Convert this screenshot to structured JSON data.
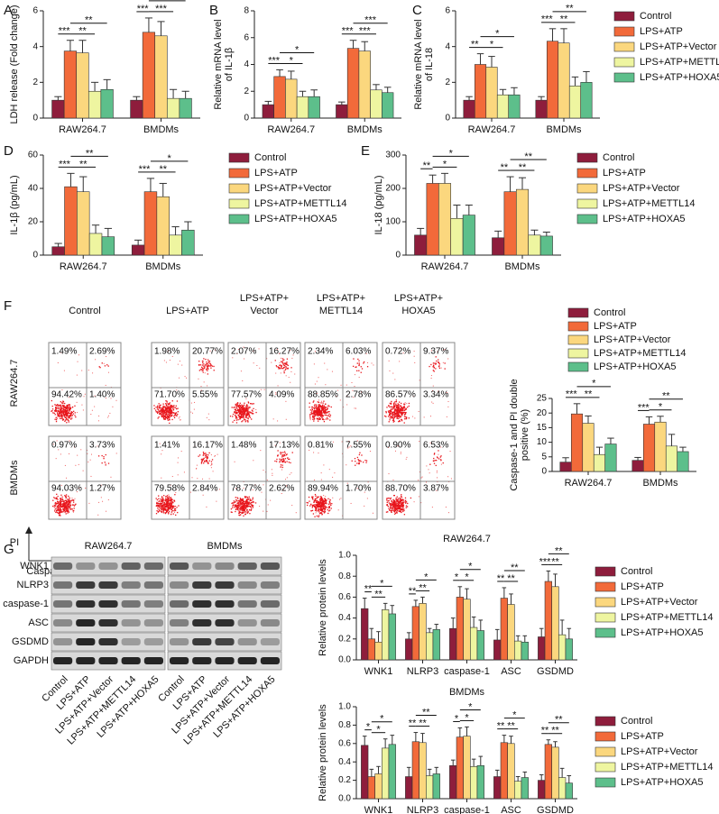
{
  "chart_data": [
    {
      "type": "bar",
      "label": "A",
      "ylabel": "LDH release (Fold change)",
      "categories": [
        "RAW264.7",
        "BMDMs"
      ],
      "ylim": [
        0,
        6
      ],
      "yticks": [
        0,
        2,
        4,
        6
      ],
      "series": [
        {
          "color": "#8e1d3c",
          "values": [
            1.0,
            1.0
          ],
          "errors": [
            0.2,
            0.2
          ]
        },
        {
          "color": "#f26a3a",
          "values": [
            3.75,
            4.8
          ],
          "errors": [
            0.6,
            0.8
          ]
        },
        {
          "color": "#fbd77e",
          "values": [
            3.65,
            4.6
          ],
          "errors": [
            0.7,
            0.8
          ]
        },
        {
          "color": "#eef5a0",
          "values": [
            1.5,
            1.1
          ],
          "errors": [
            0.5,
            0.5
          ]
        },
        {
          "color": "#5dbf8b",
          "values": [
            1.6,
            1.1
          ],
          "errors": [
            0.55,
            0.4
          ]
        }
      ],
      "significance": [
        [
          "***",
          "**",
          "**"
        ],
        [
          "***",
          "***",
          "***"
        ]
      ]
    },
    {
      "type": "bar",
      "label": "B",
      "ylabel": [
        "Relative mRNA level",
        "of IL-1β"
      ],
      "categories": [
        "RAW264.7",
        "BMDMs"
      ],
      "ylim": [
        0,
        8
      ],
      "yticks": [
        0,
        2,
        4,
        6,
        8
      ],
      "series": [
        {
          "color": "#8e1d3c",
          "values": [
            1.0,
            1.0
          ],
          "errors": [
            0.25,
            0.2
          ]
        },
        {
          "color": "#f26a3a",
          "values": [
            3.1,
            5.2
          ],
          "errors": [
            0.5,
            0.6
          ]
        },
        {
          "color": "#fbd77e",
          "values": [
            2.9,
            5.0
          ],
          "errors": [
            0.6,
            0.7
          ]
        },
        {
          "color": "#eef5a0",
          "values": [
            1.6,
            2.1
          ],
          "errors": [
            0.4,
            0.4
          ]
        },
        {
          "color": "#5dbf8b",
          "values": [
            1.6,
            1.9
          ],
          "errors": [
            0.5,
            0.4
          ]
        }
      ],
      "significance": [
        [
          "***",
          "*",
          "*"
        ],
        [
          "***",
          "***",
          "***"
        ]
      ]
    },
    {
      "type": "bar",
      "label": "C",
      "ylabel": [
        "Relative mRNA level",
        "of IL-18"
      ],
      "categories": [
        "RAW264.7",
        "BMDMs"
      ],
      "ylim": [
        0,
        6
      ],
      "yticks": [
        0,
        2,
        4,
        6
      ],
      "series": [
        {
          "name": "Control",
          "color": "#8e1d3c",
          "values": [
            1.0,
            1.0
          ],
          "errors": [
            0.2,
            0.2
          ]
        },
        {
          "name": "LPS+ATP",
          "color": "#f26a3a",
          "values": [
            3.0,
            4.3
          ],
          "errors": [
            0.6,
            0.7
          ]
        },
        {
          "name": "LPS+ATP+Vector",
          "color": "#fbd77e",
          "values": [
            2.85,
            4.2
          ],
          "errors": [
            0.6,
            0.8
          ]
        },
        {
          "name": "LPS+ATP+METTL14",
          "color": "#eef5a0",
          "values": [
            1.3,
            1.8
          ],
          "errors": [
            0.3,
            0.5
          ]
        },
        {
          "name": "LPS+ATP+HOXA5",
          "color": "#5dbf8b",
          "values": [
            1.3,
            2.0
          ],
          "errors": [
            0.4,
            0.6
          ]
        }
      ],
      "significance": [
        [
          "**",
          "*",
          "*"
        ],
        [
          "***",
          "**",
          "**"
        ]
      ]
    },
    {
      "type": "bar",
      "label": "D",
      "ylabel": "IL-1β (pg/mL)",
      "categories": [
        "RAW264.7",
        "BMDMs"
      ],
      "ylim": [
        0,
        60
      ],
      "yticks": [
        0,
        20,
        40,
        60
      ],
      "series": [
        {
          "name": "Control",
          "color": "#8e1d3c",
          "values": [
            5,
            6
          ],
          "errors": [
            2,
            3
          ]
        },
        {
          "name": "LPS+ATP",
          "color": "#f26a3a",
          "values": [
            41,
            38
          ],
          "errors": [
            8,
            8
          ]
        },
        {
          "name": "LPS+ATP+Vector",
          "color": "#fbd77e",
          "values": [
            38,
            35
          ],
          "errors": [
            9,
            8
          ]
        },
        {
          "name": "LPS+ATP+METTL14",
          "color": "#eef5a0",
          "values": [
            13,
            12
          ],
          "errors": [
            5,
            5
          ]
        },
        {
          "name": "LPS+ATP+HOXA5",
          "color": "#5dbf8b",
          "values": [
            11,
            15
          ],
          "errors": [
            5,
            5
          ]
        }
      ],
      "significance": [
        [
          "***",
          "**",
          "**"
        ],
        [
          "***",
          "**",
          "*"
        ]
      ]
    },
    {
      "type": "bar",
      "label": "E",
      "ylabel": "IL-18 (pg/mL)",
      "categories": [
        "RAW264.7",
        "BMDMs"
      ],
      "ylim": [
        0,
        300
      ],
      "yticks": [
        0,
        100,
        200,
        300
      ],
      "series": [
        {
          "name": "Control",
          "color": "#8e1d3c",
          "values": [
            60,
            52
          ],
          "errors": [
            20,
            20
          ]
        },
        {
          "name": "LPS+ATP",
          "color": "#f26a3a",
          "values": [
            215,
            190
          ],
          "errors": [
            25,
            45
          ]
        },
        {
          "name": "LPS+ATP+Vector",
          "color": "#fbd77e",
          "values": [
            215,
            197
          ],
          "errors": [
            30,
            35
          ]
        },
        {
          "name": "LPS+ATP+METTL14",
          "color": "#eef5a0",
          "values": [
            110,
            60
          ],
          "errors": [
            40,
            15
          ]
        },
        {
          "name": "LPS+ATP+HOXA5",
          "color": "#5dbf8b",
          "values": [
            120,
            57
          ],
          "errors": [
            30,
            12
          ]
        }
      ],
      "significance": [
        [
          "**",
          "*",
          "*"
        ],
        [
          "**",
          "**",
          "**"
        ]
      ]
    },
    {
      "type": "bar",
      "ylabel": [
        "Caspase-1 and PI double",
        "positive (%)"
      ],
      "categories": [
        "RAW264.7",
        "BMDMs"
      ],
      "ylim": [
        0,
        25
      ],
      "yticks": [
        0,
        5,
        10,
        15,
        20,
        25
      ],
      "series": [
        {
          "name": "Control",
          "color": "#8e1d3c",
          "values": [
            3.2,
            3.8
          ],
          "errors": [
            1.5,
            1
          ]
        },
        {
          "name": "LPS+ATP",
          "color": "#f26a3a",
          "values": [
            19.7,
            16.2
          ],
          "errors": [
            3.5,
            2.5
          ]
        },
        {
          "name": "LPS+ATP+Vector",
          "color": "#fbd77e",
          "values": [
            16.5,
            16.9
          ],
          "errors": [
            2.5,
            2
          ]
        },
        {
          "name": "LPS+ATP+METTL14",
          "color": "#eef5a0",
          "values": [
            5.8,
            8.7
          ],
          "errors": [
            2.5,
            4
          ]
        },
        {
          "name": "LPS+ATP+HOXA5",
          "color": "#5dbf8b",
          "values": [
            9.4,
            6.8
          ],
          "errors": [
            2,
            1.5
          ]
        }
      ],
      "significance": [
        [
          "***",
          "**",
          "*"
        ],
        [
          "***",
          "*",
          "**"
        ]
      ]
    },
    {
      "type": "bar",
      "title": "RAW264.7",
      "ylabel": "Relative protein levels",
      "categories": [
        "WNK1",
        "NLRP3",
        "caspase-1",
        "ASC",
        "GSDMD"
      ],
      "ylim": [
        0,
        1
      ],
      "yticks": [
        {
          "value": 0,
          "label": "0.0"
        },
        0.2,
        0.4,
        0.6,
        0.8,
        {
          "value": 1,
          "label": "1.0"
        }
      ],
      "series": [
        {
          "name": "Control",
          "color": "#8e1d3c",
          "values": [
            0.49,
            0.2,
            0.3,
            0.19,
            0.22
          ],
          "errors": [
            0.1,
            0.06,
            0.1,
            0.1,
            0.08
          ]
        },
        {
          "name": "LPS+ATP",
          "color": "#f26a3a",
          "values": [
            0.2,
            0.51,
            0.6,
            0.59,
            0.75
          ],
          "errors": [
            0.1,
            0.06,
            0.1,
            0.1,
            0.1
          ]
        },
        {
          "name": "LPS+ATP+Vector",
          "color": "#fbd77e",
          "values": [
            0.17,
            0.54,
            0.58,
            0.53,
            0.7
          ],
          "errors": [
            0.1,
            0.06,
            0.1,
            0.1,
            0.12
          ]
        },
        {
          "name": "LPS+ATP+METTL14",
          "color": "#eef5a0",
          "values": [
            0.48,
            0.26,
            0.31,
            0.18,
            0.24
          ],
          "errors": [
            0.06,
            0.04,
            0.1,
            0.05,
            0.14
          ]
        },
        {
          "name": "LPS+ATP+HOXA5",
          "color": "#5dbf8b",
          "values": [
            0.44,
            0.29,
            0.28,
            0.17,
            0.2
          ],
          "errors": [
            0.08,
            0.05,
            0.1,
            0.06,
            0.1
          ]
        }
      ],
      "significance": [
        [
          "**",
          "**",
          "*"
        ],
        [
          "**",
          "**",
          "*"
        ],
        [
          "*",
          "*",
          "*"
        ],
        [
          "**",
          "**",
          "**"
        ],
        [
          "***",
          "**",
          "**"
        ]
      ]
    },
    {
      "type": "bar",
      "title": "BMDMs",
      "ylabel": "Relative protein levels",
      "categories": [
        "WNK1",
        "NLRP3",
        "caspase-1",
        "ASC",
        "GSDMD"
      ],
      "ylim": [
        0,
        1
      ],
      "yticks": [
        {
          "value": 0,
          "label": "0.0"
        },
        0.2,
        0.4,
        0.6,
        0.8,
        {
          "value": 1,
          "label": "1.0"
        }
      ],
      "series": [
        {
          "name": "Control",
          "color": "#8e1d3c",
          "values": [
            0.58,
            0.24,
            0.36,
            0.24,
            0.2
          ],
          "errors": [
            0.1,
            0.1,
            0.06,
            0.07,
            0.06
          ]
        },
        {
          "name": "LPS+ATP",
          "color": "#f26a3a",
          "values": [
            0.24,
            0.62,
            0.67,
            0.61,
            0.59
          ],
          "errors": [
            0.08,
            0.1,
            0.1,
            0.08,
            0.05
          ]
        },
        {
          "name": "LPS+ATP+Vector",
          "color": "#fbd77e",
          "values": [
            0.27,
            0.61,
            0.68,
            0.6,
            0.56
          ],
          "errors": [
            0.08,
            0.1,
            0.1,
            0.08,
            0.06
          ]
        },
        {
          "name": "LPS+ATP+METTL14",
          "color": "#eef5a0",
          "values": [
            0.55,
            0.25,
            0.35,
            0.19,
            0.23
          ],
          "errors": [
            0.1,
            0.07,
            0.08,
            0.05,
            0.1
          ]
        },
        {
          "name": "LPS+ATP+HOXA5",
          "color": "#5dbf8b",
          "values": [
            0.59,
            0.27,
            0.36,
            0.23,
            0.17
          ],
          "errors": [
            0.1,
            0.07,
            0.1,
            0.06,
            0.08
          ]
        }
      ],
      "significance": [
        [
          "*",
          "*",
          "*"
        ],
        [
          "**",
          "**",
          "**"
        ],
        [
          "*",
          "*",
          "*"
        ],
        [
          "**",
          "**",
          "*"
        ],
        [
          "**",
          "**",
          "**"
        ]
      ]
    }
  ],
  "flow": {
    "label": "F",
    "columns": [
      [
        "Control"
      ],
      [
        "LPS+ATP"
      ],
      [
        "LPS+ATP+",
        "Vector"
      ],
      [
        "LPS+ATP+",
        "METTL14"
      ],
      [
        "LPS+ATP+",
        "HOXA5"
      ]
    ],
    "rows": [
      "RAW264.7",
      "BMDMs"
    ],
    "y_axis": "PI",
    "x_axis": "Caspase-1",
    "quadrants": [
      [
        [
          "1.49%",
          "2.69%",
          "94.42%",
          "1.40%"
        ],
        [
          "1.98%",
          "20.77%",
          "71.70%",
          "5.55%"
        ],
        [
          "2.07%",
          "16.27%",
          "77.57%",
          "4.09%"
        ],
        [
          "2.34%",
          "6.03%",
          "88.85%",
          "2.78%"
        ],
        [
          "0.72%",
          "9.37%",
          "86.57%",
          "3.34%"
        ]
      ],
      [
        [
          "0.97%",
          "3.73%",
          "94.03%",
          "1.27%"
        ],
        [
          "1.41%",
          "16.17%",
          "79.58%",
          "2.84%"
        ],
        [
          "1.48%",
          "17.13%",
          "78.77%",
          "2.62%"
        ],
        [
          "0.81%",
          "7.55%",
          "89.94%",
          "1.70%"
        ],
        [
          "0.90%",
          "6.53%",
          "88.70%",
          "3.87%"
        ]
      ]
    ]
  },
  "blot": {
    "label": "G",
    "groups": [
      "RAW264.7",
      "BMDMs"
    ],
    "proteins": [
      "WNK1",
      "NLRP3",
      "caspase-1",
      "ASC",
      "GSDMD",
      "GAPDH"
    ],
    "lanes": [
      "Control",
      "LPS+ATP",
      "LPS+ATP+Vector",
      "LPS+ATP+METTL14",
      "LPS+ATP+HOXA5"
    ]
  }
}
